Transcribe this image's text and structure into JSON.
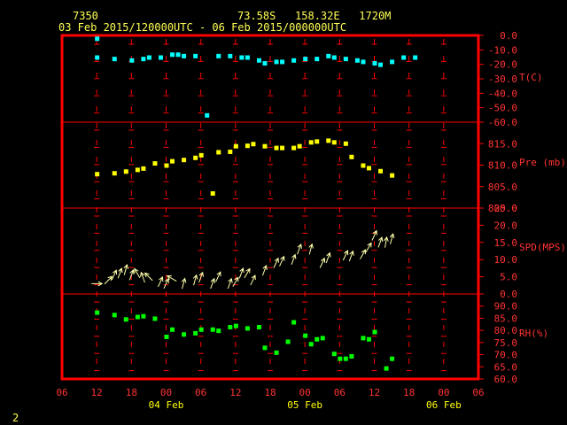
{
  "header": {
    "station_id": "7350",
    "location": "73.58S   158.32E   1720M",
    "time_range": "03 Feb 2015/120000UTC - 06 Feb 2015/000000UTC"
  },
  "footer": {
    "page_number": "2"
  },
  "colors": {
    "frame": "#ff0000",
    "axis_text": "#ff3333",
    "date_text": "#ffff00",
    "temperature": "#00ffff",
    "pressure": "#ffff00",
    "wind": "#ffffaa",
    "humidity": "#00ff00"
  },
  "chart_data": {
    "type": "scatter",
    "x_axis": {
      "unit": "hours",
      "range": [
        -6,
        66
      ],
      "tick_labels": [
        "06",
        "12",
        "18",
        "00",
        "06",
        "12",
        "18",
        "00",
        "06",
        "12",
        "18",
        "00",
        "06"
      ],
      "date_labels": [
        {
          "hour": 12,
          "label": "04 Feb"
        },
        {
          "hour": 36,
          "label": "05 Feb"
        },
        {
          "hour": 60,
          "label": "06 Feb"
        }
      ]
    },
    "panels": [
      {
        "name": "temperature",
        "label": "T(C)",
        "ylim": [
          -60,
          0
        ],
        "ticks": [
          "0.0",
          "-10.0",
          "-20.0",
          "-30.0",
          "-40.0",
          "-50.0",
          "-60.0"
        ],
        "series": [
          {
            "x": [
              0,
              0,
              3,
              6,
              8,
              9,
              11,
              13,
              14,
              15,
              17,
              19,
              21,
              23,
              25,
              26,
              28,
              29,
              31,
              32,
              34,
              36,
              38,
              40,
              41,
              43,
              45,
              46,
              48,
              49,
              51,
              53,
              55
            ],
            "y": [
              -2,
              -15,
              -16,
              -17,
              -16,
              -15,
              -15,
              -13,
              -13,
              -14,
              -14,
              -55,
              -14,
              -14,
              -15,
              -15,
              -17,
              -19,
              -18,
              -18,
              -17,
              -16,
              -16,
              -14,
              -15,
              -16,
              -17,
              -18,
              -19,
              -20,
              -18,
              -15,
              -15
            ]
          }
        ]
      },
      {
        "name": "pressure",
        "label": "Pre (mb)",
        "ylim": [
          800,
          820
        ],
        "ticks": [
          "815.0",
          "810.0",
          "805.0",
          "800.0"
        ],
        "series": [
          {
            "x": [
              0,
              3,
              5,
              7,
              8,
              10,
              12,
              13,
              15,
              17,
              18,
              20,
              21,
              23,
              24,
              26,
              27,
              29,
              31,
              32,
              34,
              35,
              37,
              38,
              40,
              41,
              43,
              44,
              46,
              47,
              49,
              51
            ],
            "y": [
              808,
              808.2,
              808.6,
              809,
              809.3,
              810.5,
              810,
              811,
              811.3,
              811.8,
              812.4,
              803.5,
              813.1,
              813.2,
              814.5,
              814.6,
              815,
              814.5,
              814.1,
              814.1,
              814.1,
              814.5,
              815.4,
              815.6,
              815.8,
              815.4,
              815.1,
              812,
              810,
              809.4,
              808.7,
              807.7
            ]
          }
        ]
      },
      {
        "name": "wind",
        "label": "SPD(MPS)",
        "ylim": [
          0,
          25
        ],
        "ticks": [
          "25.0",
          "20.0",
          "15.0",
          "10.0",
          "5.0",
          "0.0"
        ],
        "series": [
          {
            "x": [
              0,
              2,
              3,
              4,
              5,
              6,
              7,
              8,
              9,
              11,
              12,
              13,
              15,
              17,
              18,
              20,
              21,
              23,
              24,
              25,
              26,
              27,
              29,
              31,
              32,
              34,
              35,
              37,
              39,
              40,
              43,
              44,
              46,
              47,
              48,
              49,
              50,
              51
            ],
            "y": [
              3,
              4,
              5.5,
              6,
              7,
              5.5,
              6,
              4.8,
              5,
              3.5,
              3,
              4.5,
              3,
              4,
              4.8,
              3,
              5,
              3,
              3.5,
              6,
              6,
              4,
              6.8,
              9,
              9.5,
              10,
              13,
              13,
              9,
              10.5,
              11.2,
              11,
              11.5,
              13.5,
              17,
              15,
              15,
              16
            ],
            "dir_deg": [
              90,
              45,
              25,
              20,
              15,
              20,
              -30,
              -20,
              -45,
              25,
              25,
              -60,
              15,
              15,
              20,
              20,
              25,
              20,
              30,
              20,
              30,
              25,
              20,
              25,
              25,
              20,
              20,
              15,
              25,
              20,
              25,
              20,
              30,
              30,
              25,
              20,
              10,
              15
            ]
          }
        ]
      },
      {
        "name": "humidity",
        "label": "RH(%)",
        "ylim": [
          60,
          95
        ],
        "ticks": [
          "90.0",
          "85.0",
          "80.0",
          "75.0",
          "70.0",
          "65.0",
          "60.0"
        ],
        "series": [
          {
            "x": [
              0,
              3,
              5,
              7,
              8,
              10,
              12,
              13,
              15,
              17,
              18,
              20,
              21,
              23,
              24,
              26,
              28,
              29,
              31,
              33,
              34,
              36,
              37,
              38,
              39,
              41,
              42,
              43,
              44,
              46,
              47,
              48,
              50,
              51
            ],
            "y": [
              87.5,
              86.5,
              84.7,
              85.7,
              86,
              85,
              77.5,
              80.5,
              78.5,
              79,
              80.5,
              80.5,
              80,
              81.5,
              82,
              81,
              81.5,
              73,
              71,
              75.5,
              83.5,
              78,
              74.5,
              76.5,
              77,
              70.5,
              68.5,
              68.5,
              69.5,
              77,
              76.5,
              79.5,
              64.5,
              68.5
            ]
          }
        ]
      }
    ]
  }
}
